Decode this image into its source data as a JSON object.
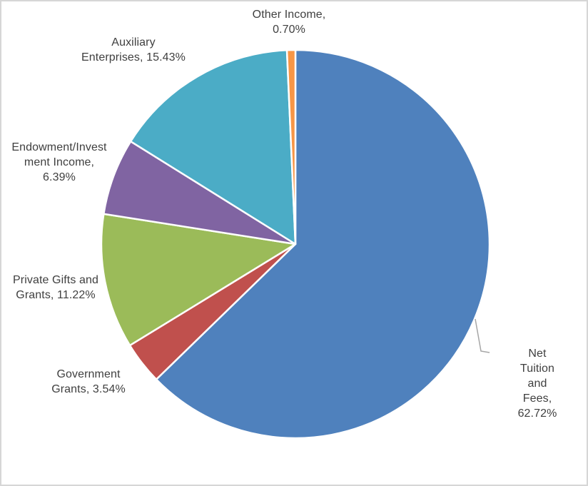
{
  "chart_data": {
    "type": "pie",
    "title": "",
    "value_unit": "percent",
    "start_angle_deg": 0,
    "direction": "clockwise",
    "legend_position": "none",
    "label_style": "outside",
    "accent_border_color": "#ffffff",
    "text_color": "#3f3f3f",
    "leader_line_color": "#a6a6a6",
    "slices": [
      {
        "name": "Net Tuition and Fees",
        "value": 62.72,
        "color": "#4F81BD",
        "label": "Net Tuition and\nFees, 62.72%"
      },
      {
        "name": "Government Grants",
        "value": 3.54,
        "color": "#C0504D",
        "label": "Government\nGrants, 3.54%"
      },
      {
        "name": "Private Gifts and Grants",
        "value": 11.22,
        "color": "#9BBB59",
        "label": "Private Gifts and\nGrants, 11.22%"
      },
      {
        "name": "Endowment/Investment Income",
        "value": 6.39,
        "color": "#8064A2",
        "label": "Endowment/Invest\nment Income,\n6.39%"
      },
      {
        "name": "Auxiliary Enterprises",
        "value": 15.43,
        "color": "#4BACC6",
        "label": "Auxiliary\nEnterprises, 15.43%"
      },
      {
        "name": "Other Income",
        "value": 0.7,
        "color": "#F79646",
        "label": "Other Income,\n0.70%"
      }
    ]
  }
}
